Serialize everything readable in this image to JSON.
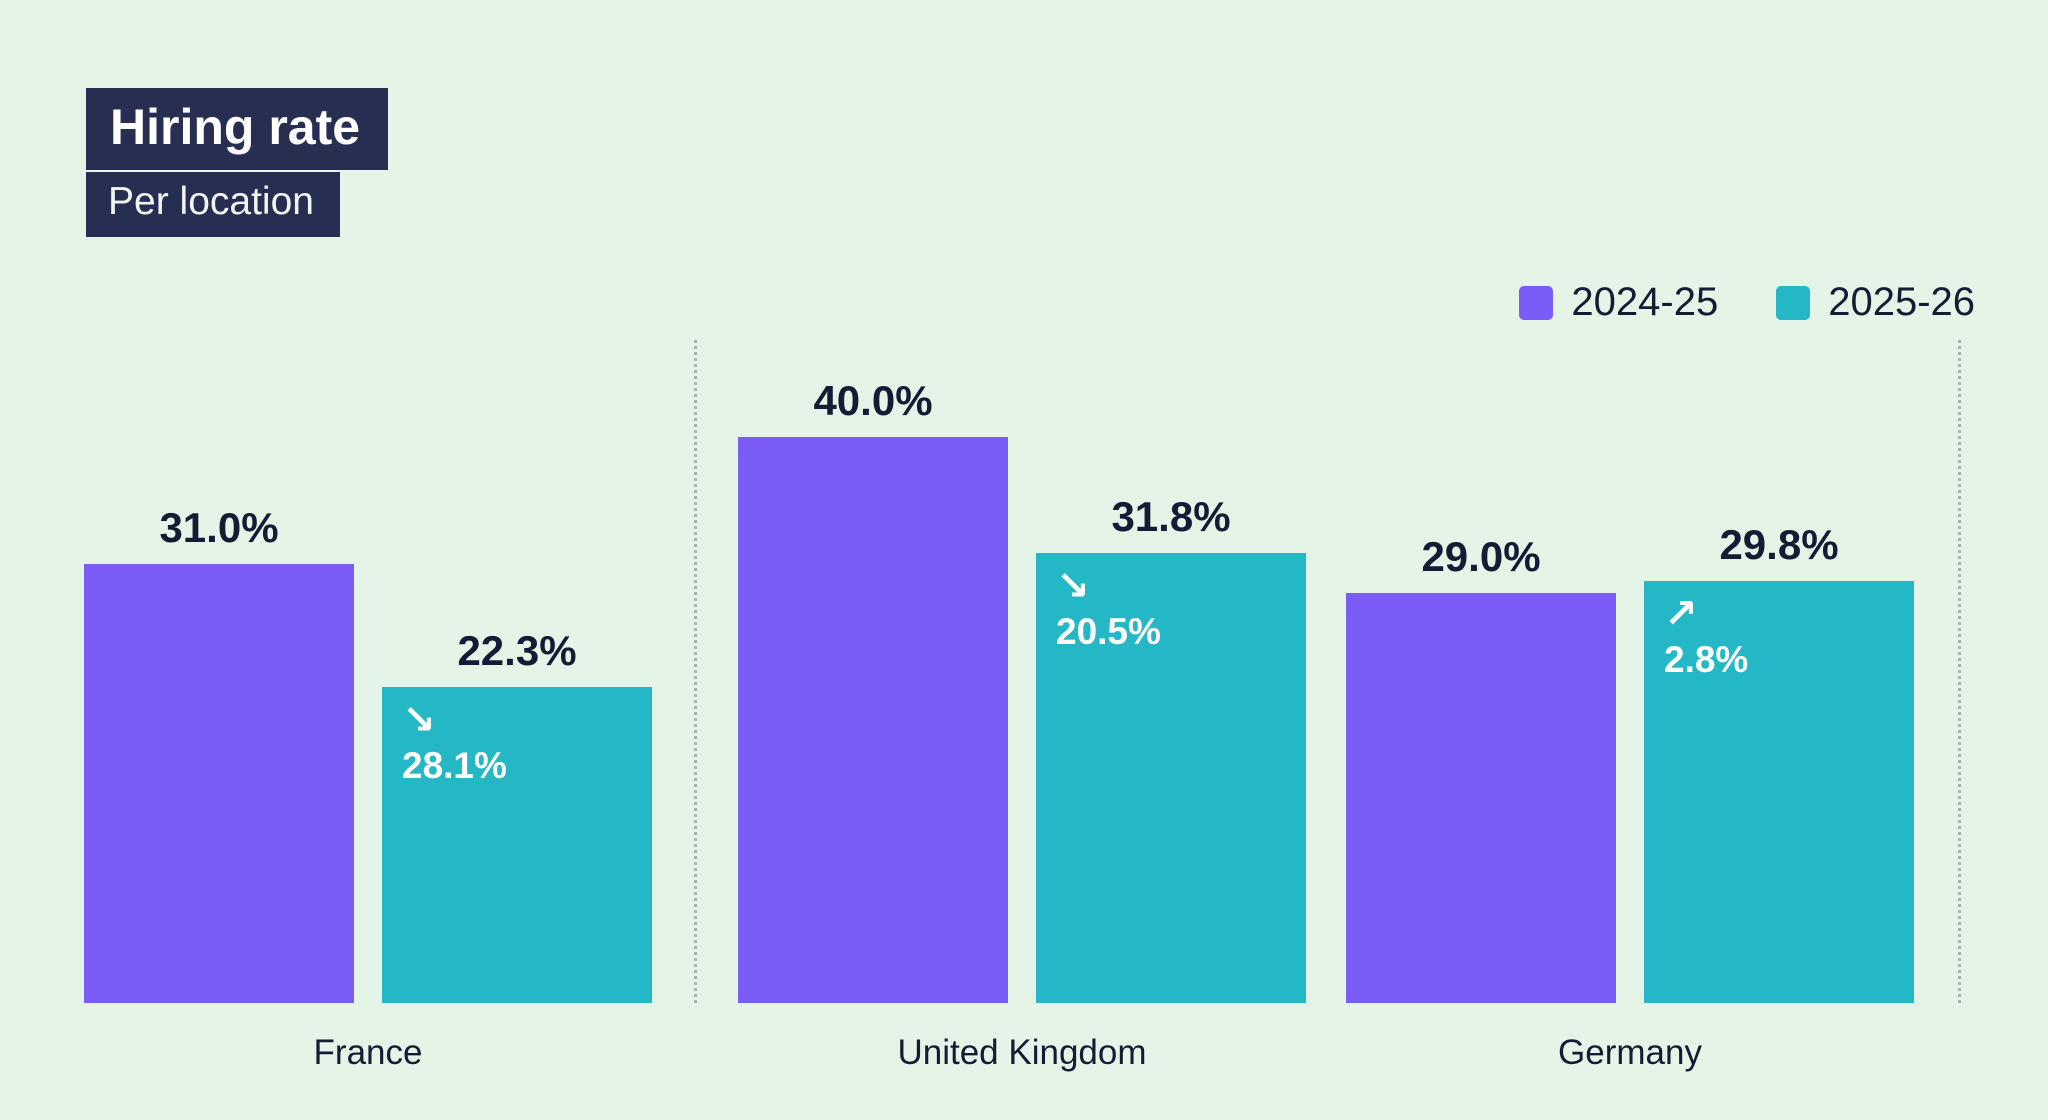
{
  "page": {
    "title": "Hiring rate",
    "subtitle": "Per location"
  },
  "colors": {
    "background": "#E4F4E6",
    "title_box": "#282D52",
    "text_dark": "#131C35",
    "text_light": "#FFFFFF",
    "separator": "#A9B6AC",
    "series_2024_25": "#7C5CF6",
    "series_2025_26": "#24B8C6"
  },
  "chart_data": {
    "type": "bar",
    "title": "Hiring rate",
    "subtitle": "Per location",
    "categories": [
      "France",
      "United Kingdom",
      "Germany"
    ],
    "series": [
      {
        "name": "2024-25",
        "color": "#7C5CF6",
        "values": [
          31.0,
          40.0,
          29.0
        ],
        "labels": [
          "31.0%",
          "40.0%",
          "29.0%"
        ]
      },
      {
        "name": "2025-26",
        "color": "#24B8C6",
        "values": [
          22.3,
          31.8,
          29.8
        ],
        "labels": [
          "22.3%",
          "31.8%",
          "29.8%"
        ]
      }
    ],
    "value_suffix": "%",
    "ylim": [
      0,
      44
    ],
    "grid": false,
    "legend_position": "top-right",
    "annotations": [
      {
        "category": "France",
        "series": "2025-26",
        "arrow": "down-right",
        "label": "28.1%"
      },
      {
        "category": "United Kingdom",
        "series": "2025-26",
        "arrow": "down-right",
        "label": "20.5%"
      },
      {
        "category": "Germany",
        "series": "2025-26",
        "arrow": "up-right",
        "label": "2.8%"
      }
    ]
  }
}
